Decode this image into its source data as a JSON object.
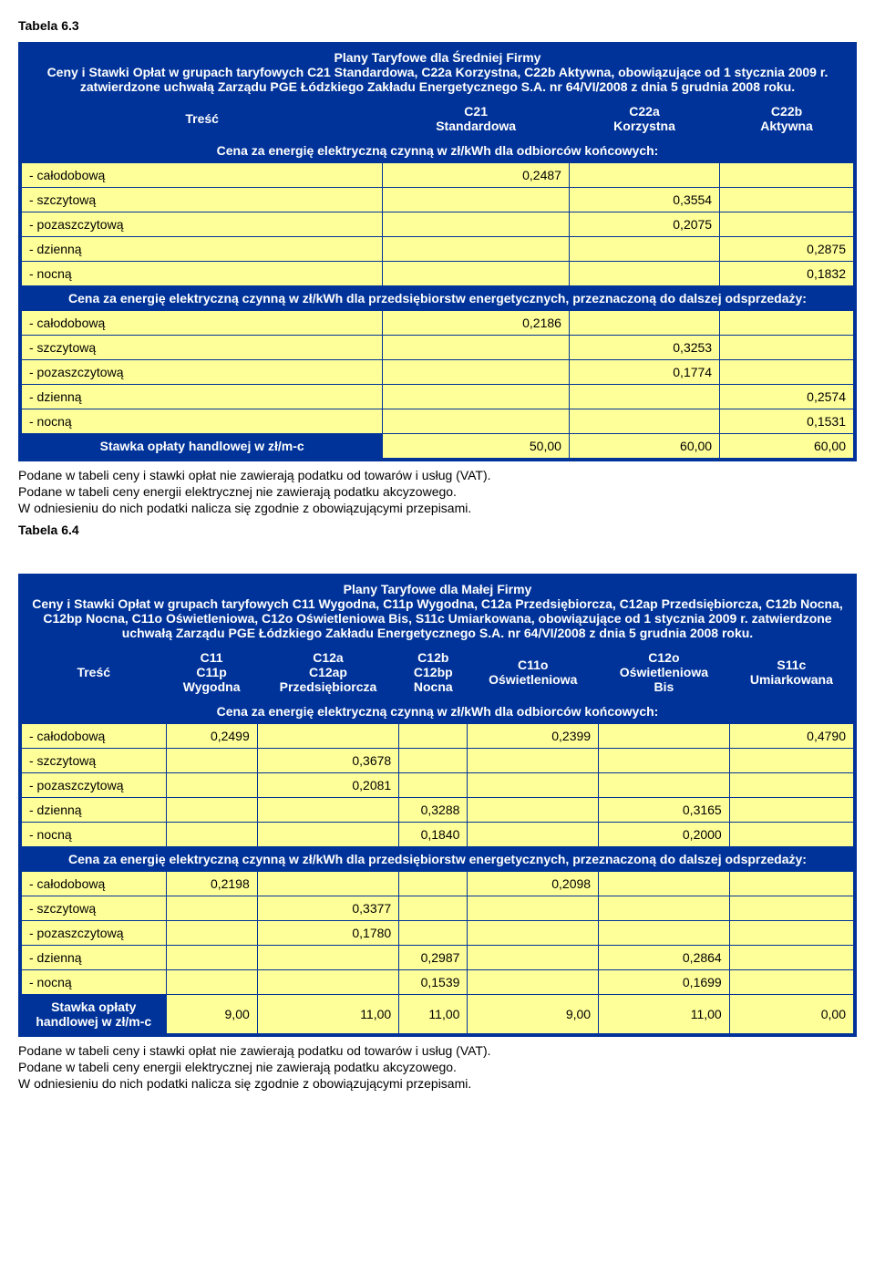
{
  "table63": {
    "label": "Tabela 6.3",
    "title": "Plany Taryfowe dla Średniej Firmy\nCeny i Stawki Opłat w grupach taryfowych C21 Standardowa, C22a Korzystna, C22b Aktywna, obowiązujące od 1 stycznia 2009 r. zatwierdzone uchwałą Zarządu PGE Łódzkiego Zakładu Energetycznego S.A. nr 64/VI/2008 z dnia 5 grudnia 2008 roku.",
    "tresc": "Treść",
    "columns": {
      "c21": "C21\nStandardowa",
      "c22a": "C22a\nKorzystna",
      "c22b": "C22b\nAktywna"
    },
    "section1": "Cena za energię elektryczną czynną w zł/kWh dla odbiorców końcowych:",
    "section2": "Cena za energię elektryczną czynną w zł/kWh dla przedsiębiorstw energetycznych, przeznaczoną do dalszej odsprzedaży:",
    "stawka_label": "Stawka opłaty handlowej w zł/m-c",
    "rows1": {
      "calodobowa": {
        "label": "- całodobową",
        "c21": "0,2487",
        "c22a": "",
        "c22b": ""
      },
      "szczytowa": {
        "label": "- szczytową",
        "c21": "",
        "c22a": "0,3554",
        "c22b": ""
      },
      "pozaszczytowa": {
        "label": "- pozaszczytową",
        "c21": "",
        "c22a": "0,2075",
        "c22b": ""
      },
      "dzienna": {
        "label": "- dzienną",
        "c21": "",
        "c22a": "",
        "c22b": "0,2875"
      },
      "nocna": {
        "label": "- nocną",
        "c21": "",
        "c22a": "",
        "c22b": "0,1832"
      }
    },
    "rows2": {
      "calodobowa": {
        "label": "- całodobową",
        "c21": "0,2186",
        "c22a": "",
        "c22b": ""
      },
      "szczytowa": {
        "label": "- szczytową",
        "c21": "",
        "c22a": "0,3253",
        "c22b": ""
      },
      "pozaszczytowa": {
        "label": "- pozaszczytową",
        "c21": "",
        "c22a": "0,1774",
        "c22b": ""
      },
      "dzienna": {
        "label": "- dzienną",
        "c21": "",
        "c22a": "",
        "c22b": "0,2574"
      },
      "nocna": {
        "label": "- nocną",
        "c21": "",
        "c22a": "",
        "c22b": "0,1531"
      }
    },
    "stawka": {
      "c21": "50,00",
      "c22a": "60,00",
      "c22b": "60,00"
    },
    "notes": "Podane w tabeli ceny i stawki opłat nie zawierają podatku od towarów i usług (VAT).\nPodane w tabeli ceny energii elektrycznej nie zawierają podatku akcyzowego.\nW odniesieniu do nich podatki nalicza się zgodnie z obowiązującymi przepisami."
  },
  "table64": {
    "label": "Tabela 6.4",
    "title": "Plany Taryfowe dla Małej Firmy\nCeny i Stawki Opłat w grupach taryfowych C11 Wygodna, C11p Wygodna, C12a Przedsiębiorcza, C12ap Przedsiębiorcza, C12b Nocna, C12bp Nocna, C11o Oświetleniowa, C12o Oświetleniowa Bis, S11c Umiarkowana, obowiązujące od 1 stycznia 2009 r. zatwierdzone uchwałą Zarządu PGE Łódzkiego Zakładu Energetycznego S.A. nr 64/VI/2008 z dnia 5 grudnia 2008 roku.",
    "tresc": "Treść",
    "columns": {
      "c11": "C11\nC11p\nWygodna",
      "c12a": "C12a\nC12ap\nPrzedsiębiorcza",
      "c12b": "C12b\nC12bp\nNocna",
      "c11o": "C11o\nOświetleniowa",
      "c12o": "C12o\nOświetleniowa\nBis",
      "s11c": "S11c\nUmiarkowana"
    },
    "section1": "Cena za energię elektryczną czynną w zł/kWh dla odbiorców końcowych:",
    "section2": "Cena za energię elektryczną czynną w zł/kWh dla przedsiębiorstw energetycznych, przeznaczoną do dalszej odsprzedaży:",
    "stawka_label": "Stawka opłaty\nhandlowej w zł/m-c",
    "rows1": {
      "calodobowa": {
        "label": "- całodobową",
        "c11": "0,2499",
        "c12a": "",
        "c12b": "",
        "c11o": "0,2399",
        "c12o": "",
        "s11c": "0,4790"
      },
      "szczytowa": {
        "label": "- szczytową",
        "c11": "",
        "c12a": "0,3678",
        "c12b": "",
        "c11o": "",
        "c12o": "",
        "s11c": ""
      },
      "pozaszczytowa": {
        "label": "- pozaszczytową",
        "c11": "",
        "c12a": "0,2081",
        "c12b": "",
        "c11o": "",
        "c12o": "",
        "s11c": ""
      },
      "dzienna": {
        "label": "- dzienną",
        "c11": "",
        "c12a": "",
        "c12b": "0,3288",
        "c11o": "",
        "c12o": "0,3165",
        "s11c": ""
      },
      "nocna": {
        "label": "- nocną",
        "c11": "",
        "c12a": "",
        "c12b": "0,1840",
        "c11o": "",
        "c12o": "0,2000",
        "s11c": ""
      }
    },
    "rows2": {
      "calodobowa": {
        "label": "- całodobową",
        "c11": "0,2198",
        "c12a": "",
        "c12b": "",
        "c11o": "0,2098",
        "c12o": "",
        "s11c": ""
      },
      "szczytowa": {
        "label": "- szczytową",
        "c11": "",
        "c12a": "0,3377",
        "c12b": "",
        "c11o": "",
        "c12o": "",
        "s11c": ""
      },
      "pozaszczytowa": {
        "label": "- pozaszczytową",
        "c11": "",
        "c12a": "0,1780",
        "c12b": "",
        "c11o": "",
        "c12o": "",
        "s11c": ""
      },
      "dzienna": {
        "label": "- dzienną",
        "c11": "",
        "c12a": "",
        "c12b": "0,2987",
        "c11o": "",
        "c12o": "0,2864",
        "s11c": ""
      },
      "nocna": {
        "label": "- nocną",
        "c11": "",
        "c12a": "",
        "c12b": "0,1539",
        "c11o": "",
        "c12o": "0,1699",
        "s11c": ""
      }
    },
    "stawka": {
      "c11": "9,00",
      "c12a": "11,00",
      "c12b": "11,00",
      "c11o": "9,00",
      "c12o": "11,00",
      "s11c": "0,00"
    },
    "notes": "Podane w tabeli ceny i stawki opłat nie zawierają podatku od towarów i usług (VAT).\nPodane w tabeli ceny energii elektrycznej nie zawierają podatku akcyzowego.\nW odniesieniu do nich podatki nalicza się zgodnie z obowiązującymi przepisami."
  }
}
